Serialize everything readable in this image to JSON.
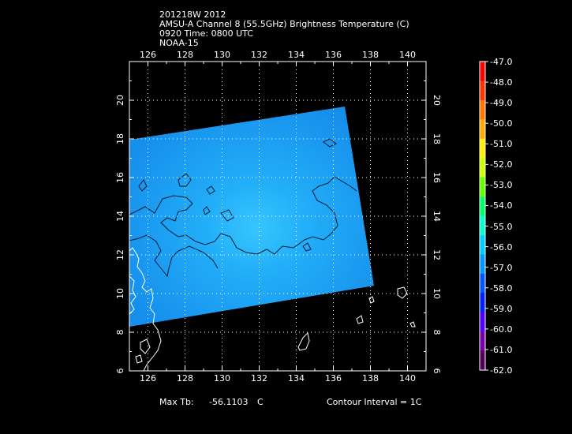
{
  "header": {
    "line1": "201218W 2012",
    "line2": "AMSU-A Channel 8 (55.5GHz) Brightness Temperature (C)",
    "line3": "0920 Time: 0800 UTC",
    "line4": "NOAA-15"
  },
  "axes": {
    "lon_ticks": [
      "126",
      "128",
      "130",
      "132",
      "134",
      "136",
      "138",
      "140"
    ],
    "lat_ticks": [
      "8",
      "10",
      "12",
      "14",
      "16",
      "18",
      "20"
    ],
    "lat_bottom_label": "6",
    "lon_range": [
      125.0,
      141.0
    ],
    "lat_range": [
      6.0,
      22.0
    ]
  },
  "footer": {
    "max_tb_label": "Max Tb:",
    "max_tb_value": "-56.1103",
    "max_tb_unit": "C",
    "contour_interval": "Contour Interval = 1C"
  },
  "colorbar": {
    "labels": [
      "-47.0",
      "-48.0",
      "-49.0",
      "-50.0",
      "-51.0",
      "-52.0",
      "-53.0",
      "-54.0",
      "-55.0",
      "-56.0",
      "-57.0",
      "-58.0",
      "-59.0",
      "-60.0",
      "-61.0",
      "-62.0"
    ],
    "colors": [
      "#ff0000",
      "#ff3300",
      "#ff7700",
      "#ffaa00",
      "#ffee00",
      "#ccff00",
      "#66ff00",
      "#00ff66",
      "#00ffcc",
      "#00ccff",
      "#0099ff",
      "#0055ff",
      "#0022ff",
      "#5500ff",
      "#7700aa",
      "#550055"
    ]
  },
  "colors": {
    "swath": "#1a9cf4",
    "swath_center": "#2fc0ff",
    "grid": "#ffffff",
    "contour": "#001a33",
    "coast": "#ffffff"
  }
}
